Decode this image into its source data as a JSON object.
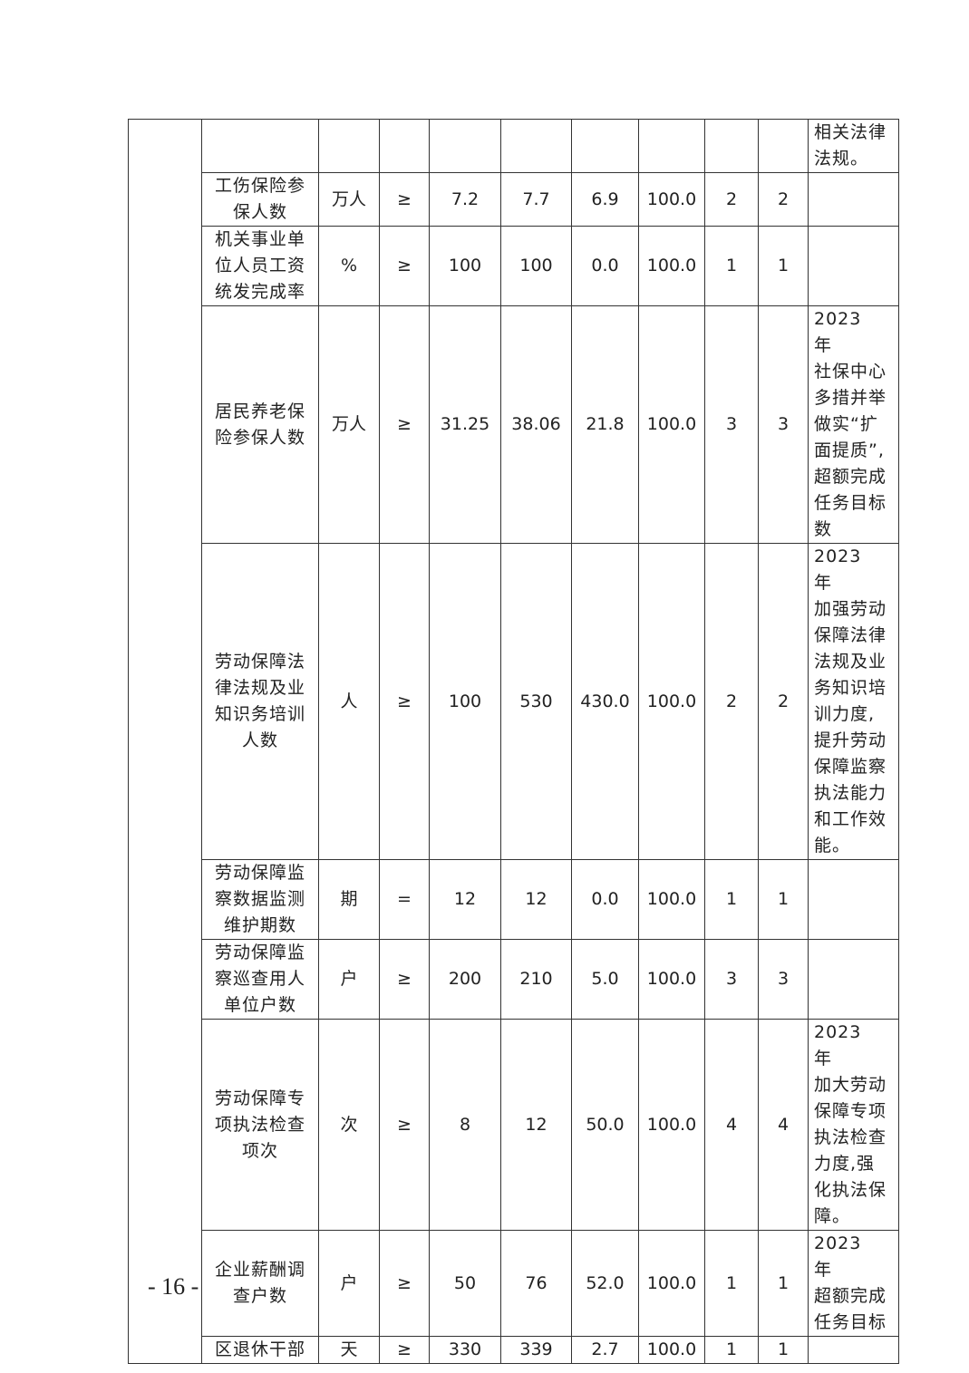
{
  "rows": [
    {
      "name": "",
      "unit": "",
      "op": "",
      "target": "",
      "actual": "",
      "deviation": "",
      "rate": "",
      "weight": "",
      "score": "",
      "remark": "相关法律\n法规。"
    },
    {
      "name": "工伤保险参\n保人数",
      "unit": "万人",
      "op": "≥",
      "target": "7.2",
      "actual": "7.7",
      "deviation": "6.9",
      "rate": "100.0",
      "weight": "2",
      "score": "2",
      "remark": ""
    },
    {
      "name": "机关事业单\n位人员工资\n统发完成率",
      "unit": "%",
      "op": "≥",
      "target": "100",
      "actual": "100",
      "deviation": "0.0",
      "rate": "100.0",
      "weight": "1",
      "score": "1",
      "remark": ""
    },
    {
      "name": "居民养老保\n险参保人数",
      "unit": "万人",
      "op": "≥",
      "target": "31.25",
      "actual": "38.06",
      "deviation": "21.8",
      "rate": "100.0",
      "weight": "3",
      "score": "3",
      "remark": "2023　年\n社保中心\n多措并举\n做实“扩\n面提质”,\n超额完成\n任务目标\n数"
    },
    {
      "name": "劳动保障法\n律法规及业\n知识务培训\n人数",
      "unit": "人",
      "op": "≥",
      "target": "100",
      "actual": "530",
      "deviation": "430.0",
      "rate": "100.0",
      "weight": "2",
      "score": "2",
      "remark": "2023　年\n加强劳动\n保障法律\n法规及业\n务知识培\n训力度,\n提升劳动\n保障监察\n执法能力\n和工作效\n能。"
    },
    {
      "name": "劳动保障监\n察数据监测\n维护期数",
      "unit": "期",
      "op": "=",
      "target": "12",
      "actual": "12",
      "deviation": "0.0",
      "rate": "100.0",
      "weight": "1",
      "score": "1",
      "remark": ""
    },
    {
      "name": "劳动保障监\n察巡查用人\n单位户数",
      "unit": "户",
      "op": "≥",
      "target": "200",
      "actual": "210",
      "deviation": "5.0",
      "rate": "100.0",
      "weight": "3",
      "score": "3",
      "remark": ""
    },
    {
      "name": "劳动保障专\n项执法检查\n项次",
      "unit": "次",
      "op": "≥",
      "target": "8",
      "actual": "12",
      "deviation": "50.0",
      "rate": "100.0",
      "weight": "4",
      "score": "4",
      "remark": "2023　年\n加大劳动\n保障专项\n执法检查\n力度,强\n化执法保\n障。"
    },
    {
      "name": "企业薪酬调\n查户数",
      "unit": "户",
      "op": "≥",
      "target": "50",
      "actual": "76",
      "deviation": "52.0",
      "rate": "100.0",
      "weight": "1",
      "score": "1",
      "remark": "2023　年\n超额完成\n任务目标"
    },
    {
      "name": "区退休干部",
      "unit": "天",
      "op": "≥",
      "target": "330",
      "actual": "339",
      "deviation": "2.7",
      "rate": "100.0",
      "weight": "1",
      "score": "1",
      "remark": ""
    }
  ],
  "page_number": "- 16 -"
}
